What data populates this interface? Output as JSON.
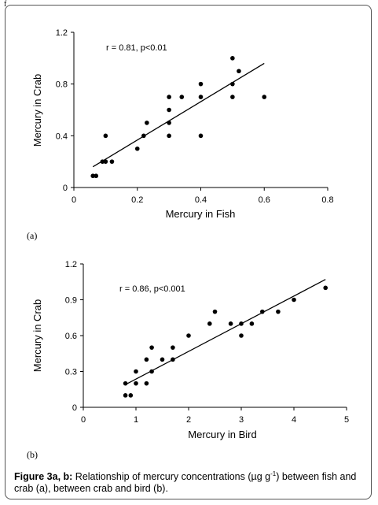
{
  "corner_mark": "f",
  "caption": {
    "bold": "Figure 3a, b:",
    "text_before_sup": " Relationship of mercury concentrations (µg g",
    "sup": "-1",
    "text_after_sup": ") between fish and crab (a), between crab and bird (b)."
  },
  "chart_data": [
    {
      "type": "scatter",
      "panel_label": "(a)",
      "xlabel": "Mercury in Fish",
      "ylabel": "Mercury in Crab",
      "annotation": "r = 0.81, p<0.01",
      "xlim": [
        0,
        0.8
      ],
      "ylim": [
        0,
        1.2
      ],
      "xticks": [
        "0",
        "0.2",
        "0.4",
        "0.6",
        "0.8"
      ],
      "xtick_values": [
        0,
        0.2,
        0.4,
        0.6,
        0.8
      ],
      "yticks": [
        "0",
        "0.4",
        "0.8",
        "1.2"
      ],
      "ytick_values": [
        0,
        0.4,
        0.8,
        1.2
      ],
      "grid": false,
      "points": [
        [
          0.06,
          0.09
        ],
        [
          0.07,
          0.09
        ],
        [
          0.09,
          0.2
        ],
        [
          0.1,
          0.2
        ],
        [
          0.1,
          0.4
        ],
        [
          0.12,
          0.2
        ],
        [
          0.2,
          0.3
        ],
        [
          0.22,
          0.4
        ],
        [
          0.23,
          0.5
        ],
        [
          0.3,
          0.4
        ],
        [
          0.3,
          0.5
        ],
        [
          0.3,
          0.6
        ],
        [
          0.3,
          0.7
        ],
        [
          0.34,
          0.7
        ],
        [
          0.4,
          0.4
        ],
        [
          0.4,
          0.7
        ],
        [
          0.4,
          0.8
        ],
        [
          0.5,
          0.7
        ],
        [
          0.5,
          0.8
        ],
        [
          0.5,
          1.0
        ],
        [
          0.52,
          0.9
        ],
        [
          0.6,
          0.7
        ]
      ],
      "trendline": [
        [
          0.06,
          0.16
        ],
        [
          0.6,
          0.96
        ]
      ]
    },
    {
      "type": "scatter",
      "panel_label": "(b)",
      "xlabel": "Mercury in Bird",
      "ylabel": "Mercury in Crab",
      "annotation": "r = 0.86, p<0.001",
      "xlim": [
        0,
        5
      ],
      "ylim": [
        0,
        1.2
      ],
      "xticks": [
        "0",
        "1",
        "2",
        "3",
        "4",
        "5"
      ],
      "xtick_values": [
        0,
        1,
        2,
        3,
        4,
        5
      ],
      "yticks": [
        "0",
        "0.3",
        "0.6",
        "0.9",
        "1.2"
      ],
      "ytick_values": [
        0,
        0.3,
        0.6,
        0.9,
        1.2
      ],
      "grid": false,
      "points": [
        [
          0.8,
          0.2
        ],
        [
          0.8,
          0.1
        ],
        [
          0.9,
          0.1
        ],
        [
          1.0,
          0.2
        ],
        [
          1.0,
          0.3
        ],
        [
          1.2,
          0.2
        ],
        [
          1.2,
          0.4
        ],
        [
          1.3,
          0.3
        ],
        [
          1.3,
          0.5
        ],
        [
          1.5,
          0.4
        ],
        [
          1.7,
          0.4
        ],
        [
          1.7,
          0.5
        ],
        [
          2.0,
          0.6
        ],
        [
          2.4,
          0.7
        ],
        [
          2.5,
          0.8
        ],
        [
          2.8,
          0.7
        ],
        [
          3.0,
          0.7
        ],
        [
          3.0,
          0.6
        ],
        [
          3.2,
          0.7
        ],
        [
          3.4,
          0.8
        ],
        [
          3.7,
          0.8
        ],
        [
          4.0,
          0.9
        ],
        [
          4.6,
          1.0
        ]
      ],
      "trendline": [
        [
          0.8,
          0.19
        ],
        [
          4.6,
          1.07
        ]
      ]
    }
  ]
}
